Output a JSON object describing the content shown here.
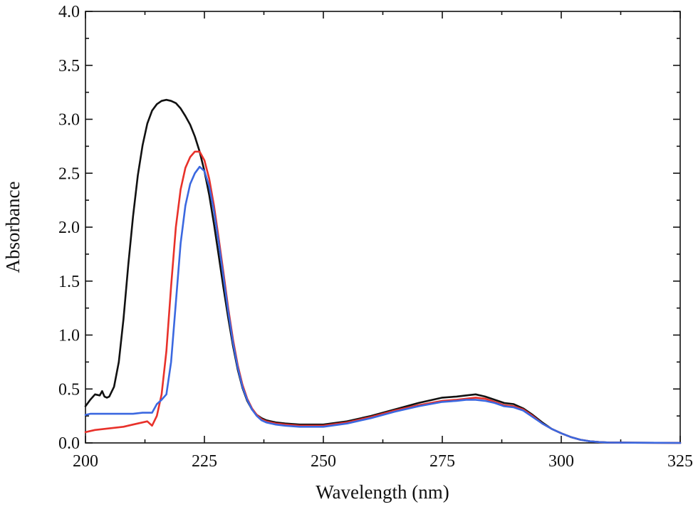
{
  "chart_data": {
    "type": "line",
    "title": "",
    "xlabel": "Wavelength (nm)",
    "ylabel": "Absorbance",
    "xlim": [
      200,
      325
    ],
    "ylim": [
      0.0,
      4.0
    ],
    "grid": false,
    "x_ticks": [
      {
        "value": 200,
        "label": "200"
      },
      {
        "value": 225,
        "label": "225"
      },
      {
        "value": 250,
        "label": "250"
      },
      {
        "value": 275,
        "label": "275"
      },
      {
        "value": 300,
        "label": "300"
      },
      {
        "value": 325,
        "label": "325"
      }
    ],
    "y_ticks": [
      {
        "value": 0.0,
        "label": "0.0"
      },
      {
        "value": 0.5,
        "label": "0.5"
      },
      {
        "value": 1.0,
        "label": "1.0"
      },
      {
        "value": 1.5,
        "label": "1.5"
      },
      {
        "value": 2.0,
        "label": "2.0"
      },
      {
        "value": 2.5,
        "label": "2.5"
      },
      {
        "value": 3.0,
        "label": "3.0"
      },
      {
        "value": 3.5,
        "label": "3.5"
      },
      {
        "value": 4.0,
        "label": "4.0"
      }
    ],
    "series": [
      {
        "name": "black",
        "color": "#111111",
        "x": [
          200,
          201,
          202,
          203,
          203.5,
          204,
          204.5,
          205,
          206,
          207,
          208,
          209,
          210,
          211,
          212,
          213,
          214,
          215,
          216,
          217,
          218,
          219,
          220,
          221,
          222,
          223,
          224,
          225,
          226,
          227,
          228,
          229,
          230,
          231,
          232,
          233,
          234,
          235,
          236,
          237,
          238,
          240,
          242,
          245,
          248,
          250,
          255,
          260,
          265,
          270,
          275,
          278,
          280,
          282,
          284,
          286,
          288,
          290,
          292,
          294,
          296,
          298,
          300,
          302,
          304,
          306,
          308,
          310,
          315,
          320,
          325
        ],
        "y": [
          0.34,
          0.4,
          0.45,
          0.44,
          0.48,
          0.43,
          0.42,
          0.43,
          0.52,
          0.75,
          1.15,
          1.65,
          2.1,
          2.48,
          2.76,
          2.96,
          3.08,
          3.14,
          3.17,
          3.18,
          3.17,
          3.15,
          3.1,
          3.03,
          2.95,
          2.84,
          2.7,
          2.52,
          2.3,
          2.03,
          1.74,
          1.44,
          1.16,
          0.9,
          0.68,
          0.51,
          0.39,
          0.31,
          0.26,
          0.23,
          0.21,
          0.19,
          0.18,
          0.17,
          0.17,
          0.17,
          0.2,
          0.25,
          0.31,
          0.37,
          0.42,
          0.43,
          0.44,
          0.45,
          0.43,
          0.4,
          0.37,
          0.36,
          0.32,
          0.26,
          0.19,
          0.13,
          0.09,
          0.055,
          0.03,
          0.015,
          0.008,
          0.004,
          0.002,
          0.001,
          0.0
        ]
      },
      {
        "name": "red",
        "color": "#e8312a",
        "x": [
          200,
          201,
          202,
          204,
          206,
          208,
          210,
          212,
          213,
          214,
          215,
          216,
          217,
          218,
          219,
          220,
          221,
          222,
          223,
          224,
          225,
          226,
          227,
          228,
          229,
          230,
          231,
          232,
          233,
          234,
          235,
          236,
          237,
          238,
          240,
          242,
          245,
          248,
          250,
          255,
          260,
          265,
          270,
          275,
          278,
          280,
          282,
          284,
          286,
          288,
          290,
          292,
          294,
          296,
          298,
          300,
          302,
          304,
          306,
          308,
          310,
          315,
          320,
          325
        ],
        "y": [
          0.1,
          0.11,
          0.12,
          0.13,
          0.14,
          0.15,
          0.17,
          0.19,
          0.2,
          0.16,
          0.25,
          0.45,
          0.85,
          1.45,
          2.0,
          2.35,
          2.55,
          2.65,
          2.7,
          2.7,
          2.62,
          2.45,
          2.2,
          1.9,
          1.58,
          1.25,
          0.96,
          0.72,
          0.54,
          0.41,
          0.32,
          0.26,
          0.22,
          0.2,
          0.18,
          0.17,
          0.16,
          0.16,
          0.16,
          0.19,
          0.24,
          0.3,
          0.35,
          0.39,
          0.4,
          0.41,
          0.42,
          0.41,
          0.38,
          0.35,
          0.34,
          0.31,
          0.25,
          0.18,
          0.13,
          0.09,
          0.055,
          0.03,
          0.015,
          0.008,
          0.004,
          0.002,
          0.001,
          0.0
        ]
      },
      {
        "name": "blue",
        "color": "#3b68e0",
        "x": [
          200,
          201,
          202,
          204,
          206,
          208,
          210,
          212,
          214,
          215,
          216,
          217,
          218,
          219,
          220,
          221,
          222,
          223,
          224,
          225,
          226,
          227,
          228,
          229,
          230,
          231,
          232,
          233,
          234,
          235,
          236,
          237,
          238,
          240,
          242,
          245,
          248,
          250,
          255,
          260,
          265,
          270,
          275,
          278,
          280,
          282,
          284,
          286,
          288,
          290,
          292,
          294,
          296,
          298,
          300,
          302,
          304,
          306,
          308,
          310,
          315,
          320,
          325
        ],
        "y": [
          0.26,
          0.27,
          0.27,
          0.27,
          0.27,
          0.27,
          0.27,
          0.28,
          0.28,
          0.36,
          0.4,
          0.45,
          0.75,
          1.3,
          1.85,
          2.2,
          2.4,
          2.5,
          2.56,
          2.52,
          2.38,
          2.15,
          1.86,
          1.54,
          1.22,
          0.93,
          0.7,
          0.52,
          0.4,
          0.31,
          0.25,
          0.21,
          0.19,
          0.17,
          0.16,
          0.15,
          0.15,
          0.15,
          0.18,
          0.23,
          0.29,
          0.34,
          0.38,
          0.39,
          0.4,
          0.4,
          0.39,
          0.37,
          0.34,
          0.33,
          0.3,
          0.24,
          0.18,
          0.13,
          0.09,
          0.055,
          0.03,
          0.015,
          0.008,
          0.004,
          0.002,
          0.001,
          0.0
        ]
      }
    ]
  }
}
